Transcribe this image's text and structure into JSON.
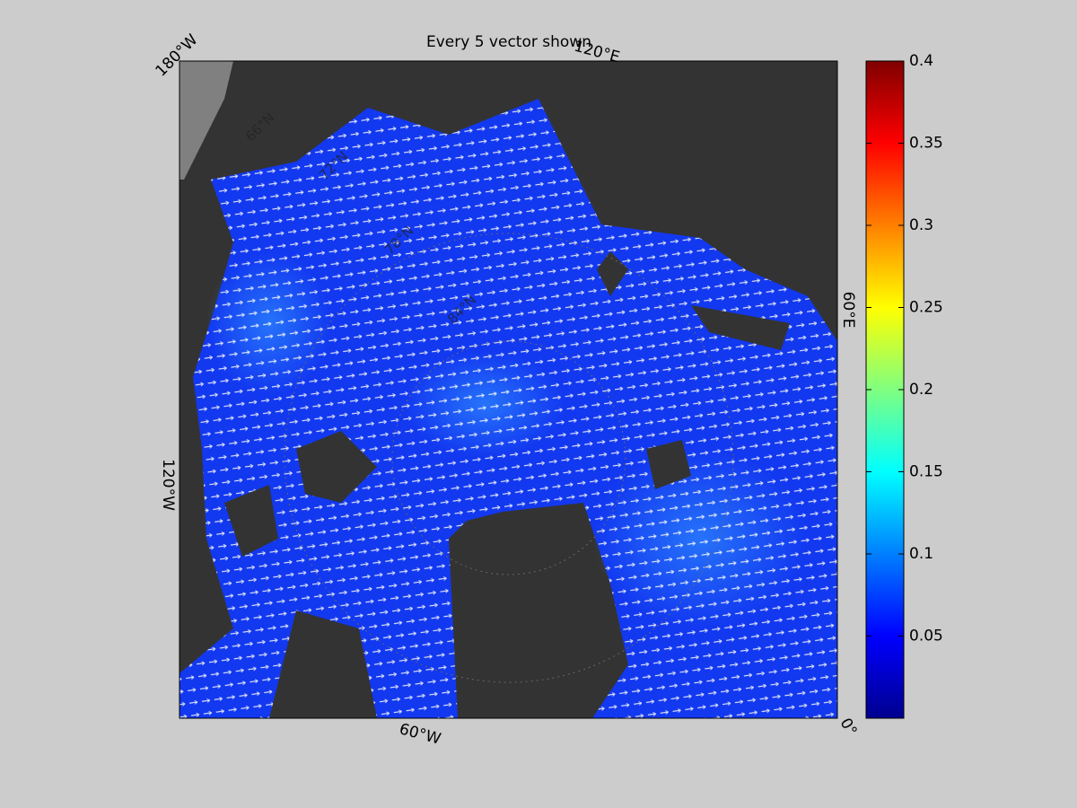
{
  "map": {
    "title": "Every 5 vector shown",
    "longitude_labels": [
      "180°W",
      "120°E",
      "60°E",
      "0°",
      "60°W",
      "120°W"
    ],
    "latitude_labels": [
      "66°N",
      "72°N",
      "78°N",
      "84°N"
    ],
    "colorbar": {
      "colormap": "jet",
      "clim": [
        0,
        0.4
      ],
      "ticks": [
        0.05,
        0.1,
        0.15,
        0.2,
        0.25,
        0.3,
        0.35,
        0.4
      ]
    }
  }
}
